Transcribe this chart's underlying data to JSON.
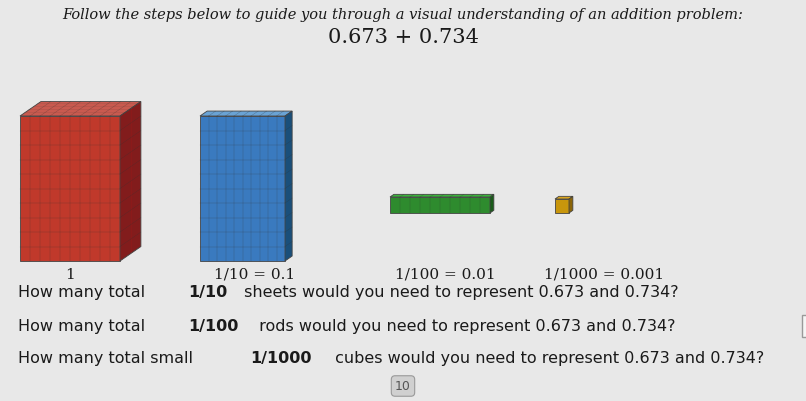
{
  "bg_color": "#e8e8e8",
  "title_line1": "Follow the steps below to guide you through a visual understanding of an addition problem:",
  "title_line2": "0.673 + 0.734",
  "title_fontsize": 10.5,
  "equation_fontsize": 15,
  "label1": "1",
  "label2": "1/10 = 0.1",
  "label3": "1/100 = 0.01",
  "label4": "1/1000 = 0.001",
  "cube_red_face": "#c0392b",
  "cube_red_top": "#d95f52",
  "cube_red_side": "#8b1a1a",
  "cube_blue_face": "#3a7abf",
  "cube_blue_top": "#6aa3d5",
  "cube_blue_side": "#1a4f7a",
  "rod_face": "#2e8b2e",
  "rod_top": "#3cb33c",
  "rod_side": "#1a5c1a",
  "scube_face": "#c8960c",
  "scube_top": "#daa520",
  "scube_side": "#8b6508",
  "text_color": "#1a1a1a",
  "box_face": "#f5f5f5",
  "box_edge": "#999999",
  "q1_pre": "How many total ",
  "q1_bold": "1/10",
  "q1_post": " sheets would you need to represent 0.673 and 0.734?",
  "q2_pre": "How many total ",
  "q2_bold": "1/100",
  "q2_post": " rods would you need to represent 0.673 and 0.734?",
  "q3_pre": "How many total small ",
  "q3_bold": "1/1000",
  "q3_post": " cubes would you need to represent 0.673 and 0.734?"
}
